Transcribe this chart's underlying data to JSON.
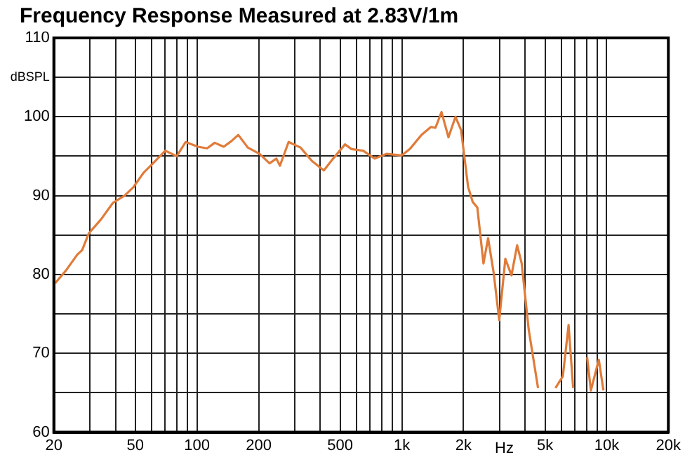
{
  "chart_data": {
    "type": "line",
    "title": "Frequency Response Measured at 2.83V/1m",
    "xlabel": "Hz",
    "ylabel": "dBSPL",
    "log": "x",
    "grid": true,
    "legend": false,
    "marker": "none",
    "line_style": "solid",
    "xlim": [
      20,
      20000
    ],
    "ylim": [
      60,
      110
    ],
    "xticks": [
      20,
      {
        "value": 30,
        "label": null
      },
      {
        "value": 40,
        "label": null
      },
      50,
      {
        "value": 60,
        "label": null
      },
      {
        "value": 70,
        "label": null
      },
      {
        "value": 80,
        "label": null
      },
      {
        "value": 90,
        "label": null
      },
      100,
      200,
      {
        "value": 300,
        "label": null
      },
      {
        "value": 400,
        "label": null
      },
      500,
      {
        "value": 600,
        "label": null
      },
      {
        "value": 700,
        "label": null
      },
      {
        "value": 800,
        "label": null
      },
      {
        "value": 900,
        "label": null
      },
      {
        "value": 1000,
        "label": "1k"
      },
      {
        "value": 2000,
        "label": "2k"
      },
      {
        "value": 3000,
        "label": null
      },
      {
        "value": 4000,
        "label": null
      },
      {
        "value": 5000,
        "label": "5k"
      },
      {
        "value": 6000,
        "label": null
      },
      {
        "value": 7000,
        "label": null
      },
      {
        "value": 8000,
        "label": null
      },
      {
        "value": 9000,
        "label": null
      },
      {
        "value": 10000,
        "label": "10k"
      },
      {
        "value": 20000,
        "label": "20k"
      }
    ],
    "yticks": [
      60,
      {
        "value": 65,
        "label": null
      },
      70,
      {
        "value": 75,
        "label": null
      },
      80,
      {
        "value": 85,
        "label": null
      },
      90,
      {
        "value": 95,
        "label": null
      },
      100,
      {
        "value": 105,
        "label": null
      },
      110
    ],
    "series": [
      {
        "color": "#e07b39",
        "x": [
          20,
          22.9,
          26,
          27.5,
          29.6,
          34,
          38.9,
          44.3,
          49,
          54.8,
          61,
          70,
          79.6,
          88,
          101,
          112,
          122,
          135,
          147,
          159,
          177,
          202,
          226,
          244,
          254,
          280,
          320,
          364,
          416,
          462,
          528,
          568,
          647,
          738,
          841,
          1000,
          1093,
          1246,
          1384,
          1459,
          1562,
          1689,
          1828,
          1947,
          2106,
          2218,
          2336,
          2503,
          2637,
          2808,
          2989,
          3201,
          3429,
          3655,
          3847,
          4163,
          4623,
          5000,
          5623,
          6110,
          6516,
          6860,
          7400,
          8030,
          8372,
          9155,
          9640
        ],
        "values": [
          78.7,
          80.5,
          82.5,
          83.1,
          85.2,
          87,
          89.1,
          90,
          91.1,
          92.9,
          94.1,
          95.7,
          95,
          96.8,
          96.2,
          96,
          96.7,
          96.2,
          96.9,
          97.7,
          96.1,
          95.3,
          94.1,
          94.7,
          93.8,
          96.8,
          96.1,
          94.4,
          93.2,
          94.7,
          96.5,
          95.9,
          95.7,
          94.7,
          95.3,
          95.1,
          95.9,
          97.7,
          98.7,
          98.6,
          100.6,
          97.4,
          100,
          98.3,
          91.1,
          89.2,
          88.5,
          81.4,
          84.6,
          80.2,
          74.2,
          82,
          79.9,
          83.7,
          81.4,
          73,
          65.6,
          null,
          65.6,
          67.1,
          73.6,
          65.6,
          null,
          69.5,
          65.3,
          69.2,
          65.3
        ]
      }
    ]
  }
}
